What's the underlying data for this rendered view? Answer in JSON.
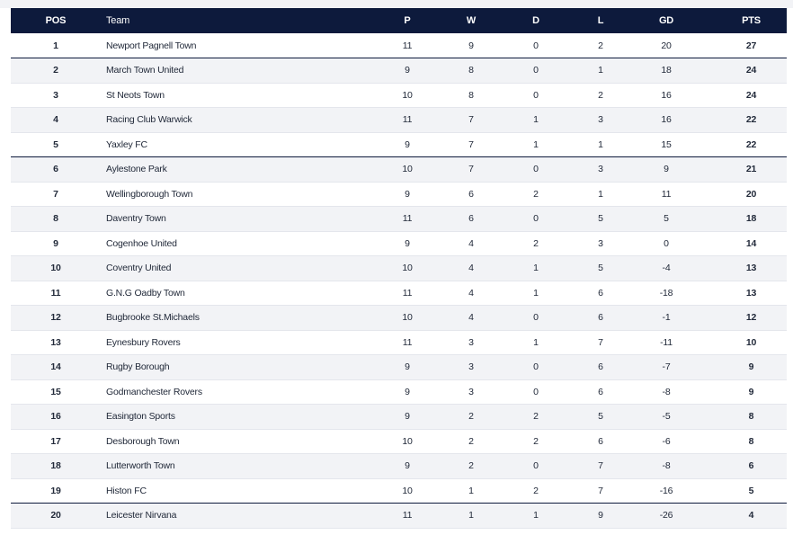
{
  "headers": {
    "pos": "POS",
    "team": "Team",
    "p": "P",
    "w": "W",
    "d": "D",
    "l": "L",
    "gd": "GD",
    "pts": "PTS"
  },
  "colors": {
    "header_bg": "#0d1a3c",
    "header_text": "#ffffff",
    "row_alt": "#f2f3f6",
    "divider": "#0d1a3c"
  },
  "rows": [
    {
      "pos": "1",
      "team": "Newport Pagnell Town",
      "p": "11",
      "w": "9",
      "d": "0",
      "l": "2",
      "gd": "20",
      "pts": "27",
      "line_below": true
    },
    {
      "pos": "2",
      "team": "March Town United",
      "p": "9",
      "w": "8",
      "d": "0",
      "l": "1",
      "gd": "18",
      "pts": "24",
      "line_below": false
    },
    {
      "pos": "3",
      "team": "St Neots Town",
      "p": "10",
      "w": "8",
      "d": "0",
      "l": "2",
      "gd": "16",
      "pts": "24",
      "line_below": false
    },
    {
      "pos": "4",
      "team": "Racing Club Warwick",
      "p": "11",
      "w": "7",
      "d": "1",
      "l": "3",
      "gd": "16",
      "pts": "22",
      "line_below": false
    },
    {
      "pos": "5",
      "team": "Yaxley FC",
      "p": "9",
      "w": "7",
      "d": "1",
      "l": "1",
      "gd": "15",
      "pts": "22",
      "line_below": true
    },
    {
      "pos": "6",
      "team": "Aylestone Park",
      "p": "10",
      "w": "7",
      "d": "0",
      "l": "3",
      "gd": "9",
      "pts": "21",
      "line_below": false
    },
    {
      "pos": "7",
      "team": "Wellingborough Town",
      "p": "9",
      "w": "6",
      "d": "2",
      "l": "1",
      "gd": "11",
      "pts": "20",
      "line_below": false
    },
    {
      "pos": "8",
      "team": "Daventry Town",
      "p": "11",
      "w": "6",
      "d": "0",
      "l": "5",
      "gd": "5",
      "pts": "18",
      "line_below": false
    },
    {
      "pos": "9",
      "team": "Cogenhoe United",
      "p": "9",
      "w": "4",
      "d": "2",
      "l": "3",
      "gd": "0",
      "pts": "14",
      "line_below": false
    },
    {
      "pos": "10",
      "team": "Coventry United",
      "p": "10",
      "w": "4",
      "d": "1",
      "l": "5",
      "gd": "-4",
      "pts": "13",
      "line_below": false
    },
    {
      "pos": "11",
      "team": "G.N.G Oadby Town",
      "p": "11",
      "w": "4",
      "d": "1",
      "l": "6",
      "gd": "-18",
      "pts": "13",
      "line_below": false
    },
    {
      "pos": "12",
      "team": "Bugbrooke St.Michaels",
      "p": "10",
      "w": "4",
      "d": "0",
      "l": "6",
      "gd": "-1",
      "pts": "12",
      "line_below": false
    },
    {
      "pos": "13",
      "team": "Eynesbury Rovers",
      "p": "11",
      "w": "3",
      "d": "1",
      "l": "7",
      "gd": "-11",
      "pts": "10",
      "line_below": false
    },
    {
      "pos": "14",
      "team": "Rugby Borough",
      "p": "9",
      "w": "3",
      "d": "0",
      "l": "6",
      "gd": "-7",
      "pts": "9",
      "line_below": false
    },
    {
      "pos": "15",
      "team": "Godmanchester Rovers",
      "p": "9",
      "w": "3",
      "d": "0",
      "l": "6",
      "gd": "-8",
      "pts": "9",
      "line_below": false
    },
    {
      "pos": "16",
      "team": "Easington Sports",
      "p": "9",
      "w": "2",
      "d": "2",
      "l": "5",
      "gd": "-5",
      "pts": "8",
      "line_below": false
    },
    {
      "pos": "17",
      "team": "Desborough Town",
      "p": "10",
      "w": "2",
      "d": "2",
      "l": "6",
      "gd": "-6",
      "pts": "8",
      "line_below": false
    },
    {
      "pos": "18",
      "team": "Lutterworth Town",
      "p": "9",
      "w": "2",
      "d": "0",
      "l": "7",
      "gd": "-8",
      "pts": "6",
      "line_below": false
    },
    {
      "pos": "19",
      "team": "Histon FC",
      "p": "10",
      "w": "1",
      "d": "2",
      "l": "7",
      "gd": "-16",
      "pts": "5",
      "line_below": true
    },
    {
      "pos": "20",
      "team": "Leicester Nirvana",
      "p": "11",
      "w": "1",
      "d": "1",
      "l": "9",
      "gd": "-26",
      "pts": "4",
      "line_below": false
    }
  ]
}
